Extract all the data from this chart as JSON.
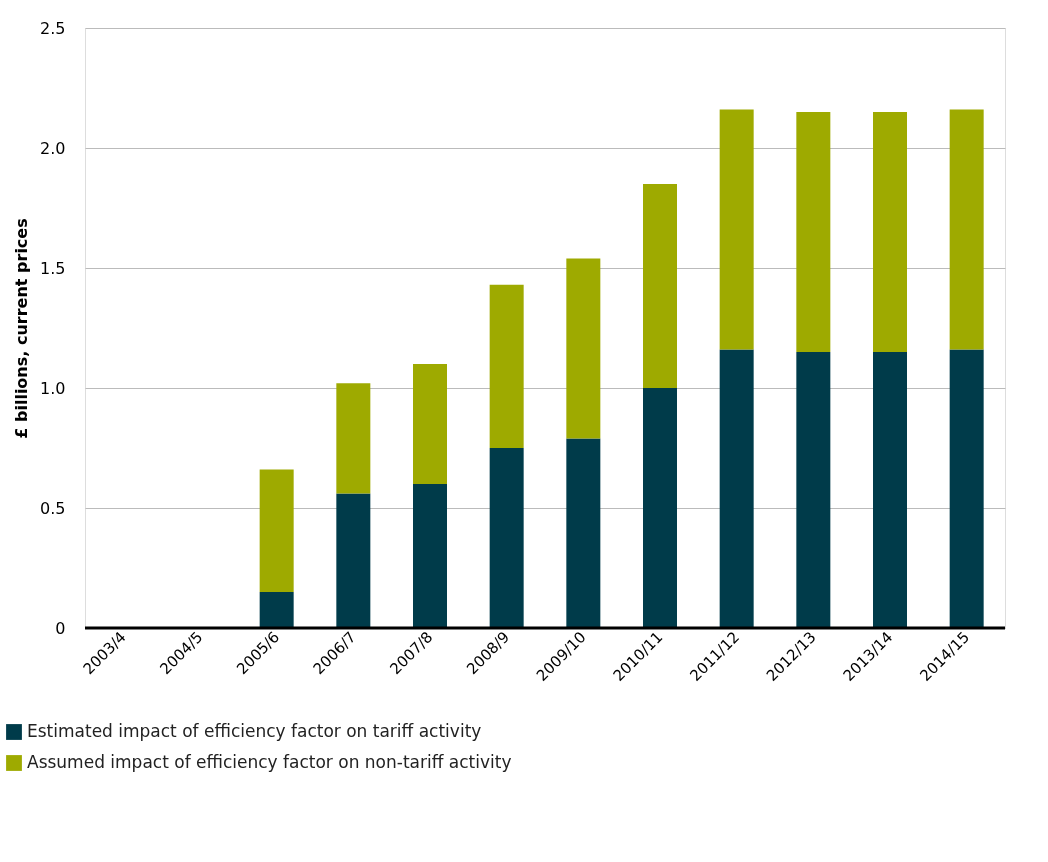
{
  "chart_data": {
    "type": "bar",
    "stacked": true,
    "ylabel": "£ billions, current prices",
    "categories": [
      "2003/4",
      "2004/5",
      "2005/6",
      "2006/7",
      "2007/8",
      "2008/9",
      "2009/10",
      "2010/11",
      "2011/12",
      "2012/13",
      "2013/14",
      "2014/15"
    ],
    "series": [
      {
        "name": "Estimated impact of efficiency factor on tariff activity",
        "color": "#003b4a",
        "values": [
          0,
          0,
          0.15,
          0.56,
          0.6,
          0.75,
          0.79,
          1.0,
          1.16,
          1.15,
          1.15,
          1.16
        ]
      },
      {
        "name": "Assumed impact of efficiency factor on non-tariff activity",
        "color": "#9eaa00",
        "values": [
          0,
          0,
          0.51,
          0.46,
          0.5,
          0.68,
          0.75,
          0.85,
          1.0,
          1.0,
          1.0,
          1.0
        ]
      }
    ],
    "ylim": [
      0,
      2.5
    ],
    "yticks": [
      0,
      {
        "value": 0.5,
        "label": "0.5"
      },
      {
        "value": 1,
        "label": "1.0"
      },
      {
        "value": 1.5,
        "label": "1.5"
      },
      {
        "value": 2,
        "label": "2.0"
      },
      {
        "value": 2.5,
        "label": "2.5"
      }
    ],
    "grid": "y",
    "legend": "bottom left"
  }
}
